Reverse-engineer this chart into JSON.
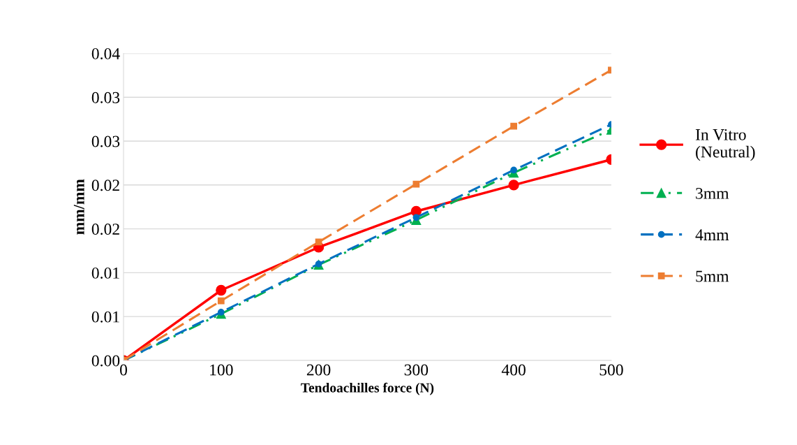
{
  "chart_data": {
    "type": "line",
    "xlabel": "Tendoachilles force (N)",
    "ylabel": "mm/mm",
    "x": [
      0,
      100,
      200,
      300,
      400,
      500
    ],
    "series": [
      {
        "name": "In Vitro\n(Neutral)",
        "color": "#ff0000",
        "marker": "circle",
        "line_style": "solid",
        "values": [
          0,
          0.008,
          0.0129,
          0.017,
          0.02,
          0.0229
        ]
      },
      {
        "name": "3mm",
        "color": "#00b050",
        "marker": "triangle",
        "line_style": "dotted",
        "values": [
          0,
          0.0053,
          0.0109,
          0.016,
          0.0214,
          0.0263
        ]
      },
      {
        "name": "4mm",
        "color": "#0070c0",
        "marker": "circle",
        "line_style": "dashed",
        "values": [
          0,
          0.0055,
          0.011,
          0.0163,
          0.0217,
          0.0269
        ]
      },
      {
        "name": "5mm",
        "color": "#ed7d31",
        "marker": "square",
        "line_style": "dashed",
        "values": [
          0,
          0.0068,
          0.0135,
          0.0201,
          0.0267,
          0.0331
        ]
      }
    ],
    "xlim": [
      0,
      500
    ],
    "xticks": [
      0,
      100,
      200,
      300,
      400,
      500
    ],
    "ylim": [
      0,
      0.035
    ],
    "yticks": [
      {
        "value": 0,
        "label": "0.00"
      },
      {
        "value": 0.005,
        "label": "0.01"
      },
      {
        "value": 0.01,
        "label": "0.01"
      },
      {
        "value": 0.015,
        "label": "0.02"
      },
      {
        "value": 0.02,
        "label": "0.02"
      },
      {
        "value": 0.025,
        "label": "0.03"
      },
      {
        "value": 0.03,
        "label": "0.03"
      },
      {
        "value": 0.035,
        "label": "0.04"
      }
    ],
    "grid": "y",
    "legend": "right"
  }
}
